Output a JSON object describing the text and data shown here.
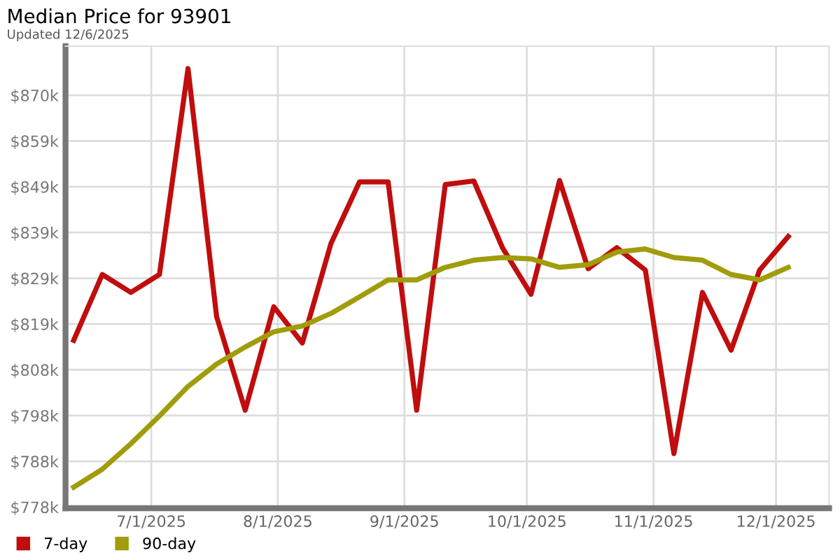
{
  "chart_data": {
    "type": "line",
    "title": "Median Price for 93901",
    "subtitle": "Updated 12/6/2025",
    "x": [
      "2025-06-12",
      "2025-06-19",
      "2025-06-26",
      "2025-07-03",
      "2025-07-10",
      "2025-07-17",
      "2025-07-24",
      "2025-07-31",
      "2025-08-07",
      "2025-08-14",
      "2025-08-21",
      "2025-08-28",
      "2025-09-04",
      "2025-09-11",
      "2025-09-18",
      "2025-09-25",
      "2025-10-02",
      "2025-10-09",
      "2025-10-16",
      "2025-10-23",
      "2025-10-30",
      "2025-11-06",
      "2025-11-13",
      "2025-11-20",
      "2025-11-27",
      "2025-12-04"
    ],
    "series": [
      {
        "name": "7-day",
        "color": "#c00d0d",
        "values": [
          814.9,
          829.6,
          825.6,
          829.6,
          875.6,
          820.2,
          799.3,
          822.4,
          814.3,
          836.5,
          850.3,
          850.3,
          799.3,
          849.7,
          850.5,
          835.6,
          825.2,
          850.6,
          830.9,
          835.6,
          830.6,
          789.6,
          825.6,
          812.7,
          830.6,
          838.1
        ]
      },
      {
        "name": "90-day",
        "color": "#a09c0b",
        "values": [
          782.1,
          786.1,
          791.8,
          798.0,
          804.6,
          809.6,
          813.4,
          816.8,
          818.1,
          820.9,
          824.6,
          828.4,
          828.4,
          831.2,
          832.8,
          833.4,
          833.1,
          831.2,
          831.8,
          834.6,
          835.3,
          833.4,
          832.8,
          829.6,
          828.4,
          831.2
        ]
      }
    ],
    "xlim": [
      "2025-06-10",
      "2025-12-14"
    ],
    "xticks": [
      {
        "value": "2025-07-01",
        "label": "7/1/2025"
      },
      {
        "value": "2025-08-01",
        "label": "8/1/2025"
      },
      {
        "value": "2025-09-01",
        "label": "9/1/2025"
      },
      {
        "value": "2025-10-01",
        "label": "10/1/2025"
      },
      {
        "value": "2025-11-01",
        "label": "11/1/2025"
      },
      {
        "value": "2025-12-01",
        "label": "12/1/2025"
      }
    ],
    "ylim": [
      777.4,
      880.6
    ],
    "yticks": [
      {
        "value": 777.65,
        "label": "$778k"
      },
      {
        "value": 787.87,
        "label": "$788k"
      },
      {
        "value": 798.09,
        "label": "$798k"
      },
      {
        "value": 808.32,
        "label": "$808k"
      },
      {
        "value": 818.54,
        "label": "$819k"
      },
      {
        "value": 828.76,
        "label": "$829k"
      },
      {
        "value": 838.98,
        "label": "$839k"
      },
      {
        "value": 849.2,
        "label": "$849k"
      },
      {
        "value": 859.43,
        "label": "$859k"
      },
      {
        "value": 869.65,
        "label": "$870k"
      }
    ],
    "grid": true,
    "legend": "bottom left",
    "marker": "none",
    "line_style": "solid"
  }
}
